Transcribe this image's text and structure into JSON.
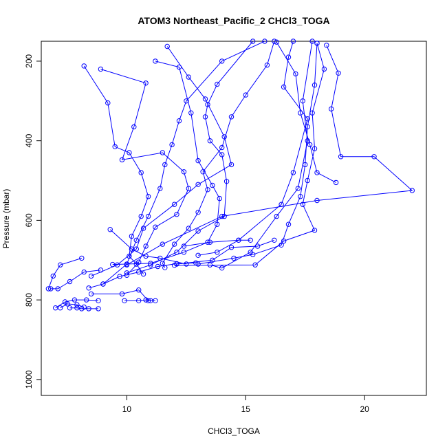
{
  "chart_data": {
    "type": "scatter",
    "title": "ATOM3 Northeast_Pacific_2 CHCl3_TOGA",
    "xlabel": "CHCl3_TOGA",
    "ylabel": "Pressure (mbar)",
    "xlim": [
      6.4,
      22.6
    ],
    "ylim": [
      1040,
      150
    ],
    "y_reversed": true,
    "x_ticks": [
      10,
      15,
      20
    ],
    "y_ticks": [
      200,
      400,
      600,
      800,
      1000
    ],
    "grid": false,
    "legend": "none",
    "color": "#0000ff",
    "marker": "open-circle",
    "lines": "connected",
    "series": [
      {
        "points": [
          [
            16.3,
            152
          ],
          [
            17.1,
            232
          ],
          [
            17.3,
            330
          ],
          [
            17.7,
            410
          ],
          [
            18.0,
            480
          ],
          [
            18.8,
            505
          ]
        ]
      },
      {
        "points": [
          [
            17.8,
            150
          ],
          [
            17.4,
            300
          ],
          [
            17.6,
            400
          ],
          [
            17.2,
            520
          ],
          [
            16.3,
            590
          ],
          [
            15.2,
            680
          ],
          [
            14.0,
            720
          ],
          [
            13.5,
            712
          ]
        ]
      },
      {
        "points": [
          [
            18.0,
            155
          ],
          [
            18.3,
            220
          ],
          [
            17.8,
            330
          ],
          [
            17.9,
            420
          ],
          [
            17.6,
            500
          ],
          [
            17.4,
            560
          ],
          [
            17.9,
            625
          ],
          [
            16.6,
            652
          ],
          [
            15.4,
            712
          ],
          [
            12.0,
            713
          ]
        ]
      },
      {
        "points": [
          [
            18.4,
            160
          ],
          [
            18.9,
            230
          ],
          [
            18.6,
            320
          ],
          [
            19.0,
            440
          ],
          [
            20.4,
            440
          ],
          [
            22.0,
            525
          ],
          [
            18.0,
            550
          ],
          [
            14.0,
            590
          ],
          [
            11.5,
            660
          ],
          [
            10.0,
            712
          ]
        ]
      },
      {
        "points": [
          [
            11.7,
            163
          ],
          [
            12.6,
            240
          ],
          [
            13.3,
            295
          ],
          [
            14.1,
            390
          ],
          [
            14.4,
            460
          ],
          [
            13.0,
            510
          ],
          [
            12.0,
            560
          ],
          [
            10.7,
            620
          ],
          [
            10.4,
            672
          ],
          [
            9.6,
            712
          ],
          [
            8.5,
            740
          ]
        ]
      },
      {
        "points": [
          [
            15.8,
            150
          ],
          [
            14.0,
            200
          ],
          [
            12.5,
            300
          ],
          [
            12.2,
            350
          ],
          [
            11.9,
            410
          ],
          [
            11.6,
            460
          ],
          [
            11.4,
            520
          ],
          [
            10.9,
            590
          ],
          [
            10.4,
            650
          ],
          [
            10.0,
            710
          ],
          [
            9.0,
            760
          ],
          [
            8.4,
            770
          ]
        ]
      },
      {
        "points": [
          [
            8.2,
            212
          ],
          [
            9.2,
            305
          ],
          [
            9.5,
            415
          ],
          [
            10.1,
            430
          ],
          [
            10.6,
            480
          ],
          [
            10.9,
            540
          ],
          [
            10.6,
            590
          ],
          [
            10.2,
            640
          ],
          [
            10.1,
            690
          ],
          [
            10.4,
            710
          ],
          [
            10.7,
            735
          ]
        ]
      },
      {
        "points": [
          [
            11.2,
            200
          ],
          [
            12.2,
            215
          ],
          [
            12.7,
            330
          ],
          [
            13.0,
            450
          ],
          [
            13.6,
            512
          ],
          [
            13.9,
            545
          ],
          [
            13.8,
            610
          ],
          [
            13.4,
            655
          ],
          [
            12.4,
            680
          ],
          [
            11.0,
            708
          ],
          [
            9.4,
            711
          ]
        ]
      },
      {
        "points": [
          [
            15.3,
            150
          ],
          [
            13.8,
            258
          ],
          [
            13.4,
            309
          ],
          [
            13.3,
            340
          ],
          [
            13.5,
            400
          ],
          [
            14.0,
            435
          ],
          [
            14.2,
            502
          ],
          [
            14.1,
            590
          ],
          [
            13.0,
            627
          ],
          [
            12.1,
            680
          ],
          [
            11.0,
            712
          ],
          [
            10.0,
            732
          ]
        ]
      },
      {
        "points": [
          [
            8.9,
            220
          ],
          [
            10.8,
            255
          ],
          [
            10.3,
            365
          ],
          [
            9.8,
            448
          ],
          [
            11.5,
            430
          ],
          [
            12.4,
            478
          ],
          [
            12.6,
            520
          ],
          [
            12.1,
            585
          ],
          [
            11.2,
            617
          ],
          [
            10.8,
            665
          ],
          [
            10.5,
            705
          ],
          [
            10.0,
            738
          ]
        ]
      },
      {
        "points": [
          [
            16.2,
            150
          ],
          [
            15.9,
            210
          ],
          [
            15.0,
            285
          ],
          [
            14.4,
            340
          ],
          [
            14.0,
            417
          ],
          [
            13.2,
            478
          ],
          [
            13.4,
            523
          ],
          [
            13.0,
            580
          ],
          [
            12.6,
            620
          ],
          [
            12.0,
            660
          ],
          [
            11.5,
            708
          ],
          [
            11.6,
            719
          ]
        ]
      },
      {
        "points": [
          [
            18.0,
            155
          ],
          [
            17.9,
            260
          ],
          [
            17.6,
            365
          ],
          [
            17.5,
            460
          ],
          [
            17.3,
            540
          ],
          [
            16.8,
            610
          ],
          [
            16.5,
            662
          ],
          [
            15.3,
            686
          ],
          [
            14.5,
            695
          ],
          [
            13.0,
            710
          ]
        ]
      },
      {
        "points": [
          [
            17.0,
            150
          ],
          [
            16.8,
            190
          ],
          [
            16.6,
            265
          ],
          [
            17.6,
            345
          ],
          [
            17.0,
            480
          ],
          [
            16.5,
            560
          ],
          [
            14.7,
            650
          ],
          [
            13.8,
            680
          ],
          [
            13.0,
            688
          ]
        ]
      },
      {
        "points": [
          [
            9.0,
            760
          ],
          [
            9.7,
            741
          ],
          [
            10.5,
            730
          ],
          [
            11.3,
            716
          ],
          [
            12.1,
            709
          ],
          [
            12.9,
            707
          ]
        ]
      },
      {
        "points": [
          [
            8.5,
            785
          ],
          [
            9.8,
            785
          ],
          [
            10.5,
            775
          ],
          [
            10.9,
            802
          ],
          [
            11.2,
            802
          ]
        ]
      },
      {
        "points": [
          [
            6.8,
            772
          ],
          [
            7.1,
            772
          ],
          [
            7.6,
            754
          ],
          [
            8.2,
            730
          ],
          [
            8.9,
            725
          ]
        ]
      },
      {
        "points": [
          [
            7.0,
            820
          ],
          [
            7.4,
            805
          ],
          [
            7.8,
            800
          ],
          [
            8.3,
            800
          ],
          [
            8.8,
            802
          ]
        ]
      },
      {
        "points": [
          [
            7.6,
            820
          ],
          [
            7.9,
            820
          ],
          [
            8.1,
            822
          ],
          [
            8.4,
            822
          ],
          [
            8.8,
            822
          ]
        ]
      },
      {
        "points": [
          [
            6.7,
            772
          ],
          [
            6.9,
            740
          ],
          [
            7.2,
            712
          ],
          [
            8.1,
            695
          ]
        ]
      },
      {
        "points": [
          [
            7.2,
            820
          ],
          [
            7.5,
            810
          ],
          [
            7.9,
            812
          ],
          [
            8.2,
            818
          ]
        ]
      },
      {
        "points": [
          [
            9.9,
            802
          ],
          [
            10.5,
            802
          ],
          [
            10.8,
            800
          ],
          [
            11.0,
            802
          ]
        ]
      },
      {
        "points": [
          [
            9.3,
            623
          ],
          [
            10.2,
            672
          ],
          [
            10.8,
            690
          ],
          [
            11.4,
            695
          ],
          [
            12.5,
            710
          ]
        ]
      },
      {
        "points": [
          [
            15.2,
            650
          ],
          [
            14.7,
            650
          ],
          [
            13.5,
            655
          ],
          [
            12.4,
            665
          ]
        ]
      },
      {
        "points": [
          [
            16.2,
            650
          ],
          [
            15.5,
            665
          ],
          [
            14.4,
            668
          ],
          [
            13.6,
            700
          ],
          [
            12.1,
            710
          ]
        ]
      }
    ]
  }
}
